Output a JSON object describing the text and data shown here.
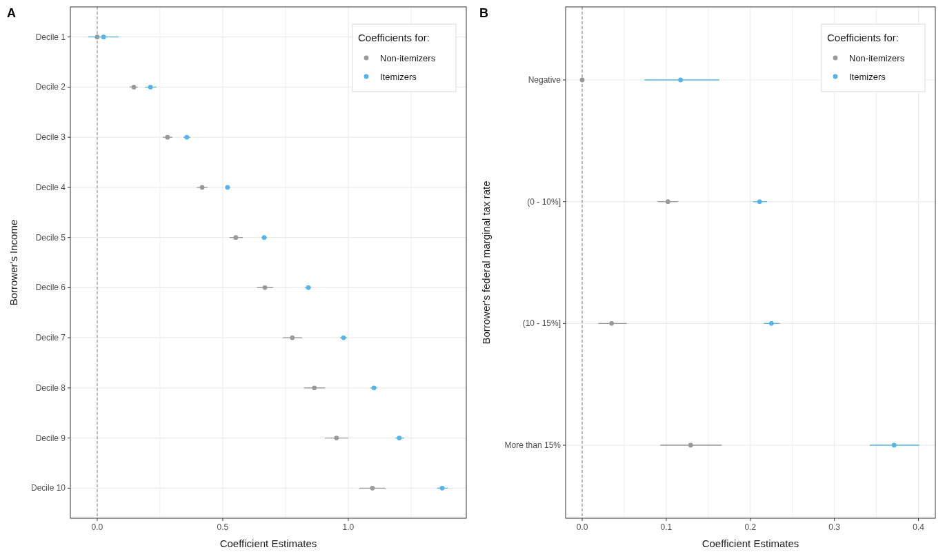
{
  "chart_data": [
    {
      "type": "scatter",
      "orientation": "horizontal",
      "title": "A",
      "xlabel": "Coefficient Estimates",
      "ylabel": "Borrower's Income",
      "legend_title": "Coefficients for:",
      "legend": "top right",
      "grid": true,
      "marker": "circle",
      "categories": [
        "Decile 1",
        "Decile 2",
        "Decile 3",
        "Decile 4",
        "Decile 5",
        "Decile 6",
        "Decile 7",
        "Decile 8",
        "Decile 9",
        "Decile 10"
      ],
      "xlim": [
        -0.107,
        1.47
      ],
      "xticks": [
        {
          "value": 0,
          "label": "0.0"
        },
        {
          "value": 0.25,
          "label": null
        },
        0.5,
        {
          "value": 0.75,
          "label": null
        },
        {
          "value": 1,
          "label": "1.0"
        },
        {
          "value": 1.25,
          "label": null
        }
      ],
      "ref_lines": [
        {
          "axis": "x",
          "value": 0,
          "line_style": "dashed",
          "color": "#808080"
        }
      ],
      "series": [
        {
          "name": "Non-itemizers",
          "color": "#999999",
          "values": [
            0,
            0.146,
            0.28,
            0.418,
            0.552,
            0.668,
            0.777,
            0.865,
            0.953,
            1.096
          ],
          "errors": [
            null,
            [
              0.129,
              0.162
            ],
            [
              0.261,
              0.299
            ],
            [
              0.396,
              0.44
            ],
            [
              0.527,
              0.58
            ],
            [
              0.637,
              0.701
            ],
            [
              0.739,
              0.816
            ],
            [
              0.824,
              0.907
            ],
            [
              0.907,
              1.0
            ],
            [
              1.044,
              1.148
            ]
          ]
        },
        {
          "name": "Itemizers",
          "color": "#56b4e9",
          "values": [
            0.025,
            0.212,
            0.357,
            0.519,
            0.665,
            0.841,
            0.981,
            1.102,
            1.203,
            1.374
          ],
          "errors": [
            [
              -0.036,
              0.085
            ],
            [
              0.19,
              0.236
            ],
            [
              0.343,
              0.371
            ],
            [
              0.511,
              0.53
            ],
            [
              0.654,
              0.676
            ],
            [
              0.827,
              0.852
            ],
            [
              0.967,
              0.995
            ],
            [
              1.088,
              1.115
            ],
            [
              1.187,
              1.223
            ],
            [
              1.354,
              1.396
            ]
          ]
        }
      ]
    },
    {
      "type": "scatter",
      "orientation": "horizontal",
      "title": "B",
      "xlabel": "Coefficient Estimates",
      "ylabel": "Borrower's federal marginal tax rate",
      "legend_title": "Coefficients for:",
      "legend": "top right",
      "grid": true,
      "marker": "circle",
      "categories": [
        "Negative",
        "(0 - 10%]",
        "(10 - 15%]",
        "More than 15%"
      ],
      "xlim": [
        -0.0197,
        0.42
      ],
      "xticks": [
        {
          "value": 0,
          "label": "0.0"
        },
        {
          "value": 0.05,
          "label": null
        },
        0.1,
        {
          "value": 0.15,
          "label": null
        },
        0.2,
        {
          "value": 0.25,
          "label": null
        },
        0.3,
        {
          "value": 0.35,
          "label": null
        },
        0.4
      ],
      "ref_lines": [
        {
          "axis": "x",
          "value": 0,
          "line_style": "dashed",
          "color": "#808080"
        }
      ],
      "series": [
        {
          "name": "Non-itemizers",
          "color": "#999999",
          "values": [
            0,
            0.102,
            0.035,
            0.129
          ],
          "errors": [
            null,
            [
              0.09,
              0.114
            ],
            [
              0.019,
              0.053
            ],
            [
              0.093,
              0.166
            ]
          ]
        },
        {
          "name": "Itemizers",
          "color": "#56b4e9",
          "values": [
            0.117,
            0.211,
            0.225,
            0.371
          ],
          "errors": [
            [
              0.074,
              0.163
            ],
            [
              0.203,
              0.22
            ],
            [
              0.216,
              0.235
            ],
            [
              0.342,
              0.401
            ]
          ]
        }
      ]
    }
  ]
}
